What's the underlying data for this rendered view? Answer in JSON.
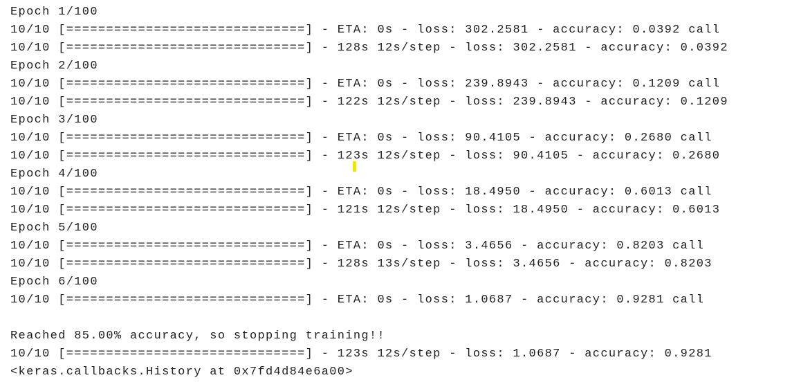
{
  "lines": [
    "Epoch 1/100",
    "10/10 [==============================] - ETA: 0s - loss: 302.2581 - accuracy: 0.0392 call",
    "10/10 [==============================] - 128s 12s/step - loss: 302.2581 - accuracy: 0.0392",
    "Epoch 2/100",
    "10/10 [==============================] - ETA: 0s - loss: 239.8943 - accuracy: 0.1209 call",
    "10/10 [==============================] - 122s 12s/step - loss: 239.8943 - accuracy: 0.1209",
    "Epoch 3/100",
    "10/10 [==============================] - ETA: 0s - loss: 90.4105 - accuracy: 0.2680 call",
    "10/10 [==============================] - 123s 12s/step - loss: 90.4105 - accuracy: 0.2680",
    "Epoch 4/100",
    "10/10 [==============================] - ETA: 0s - loss: 18.4950 - accuracy: 0.6013 call",
    "10/10 [==============================] - 121s 12s/step - loss: 18.4950 - accuracy: 0.6013",
    "Epoch 5/100",
    "10/10 [==============================] - ETA: 0s - loss: 3.4656 - accuracy: 0.8203 call",
    "10/10 [==============================] - 128s 13s/step - loss: 3.4656 - accuracy: 0.8203",
    "Epoch 6/100",
    "10/10 [==============================] - ETA: 0s - loss: 1.0687 - accuracy: 0.9281 call",
    "Reached 85.00% accuracy, so stopping training!!",
    "10/10 [==============================] - 123s 12s/step - loss: 1.0687 - accuracy: 0.9281",
    "<keras.callbacks.History at 0x7fd4d84e6a00>"
  ]
}
